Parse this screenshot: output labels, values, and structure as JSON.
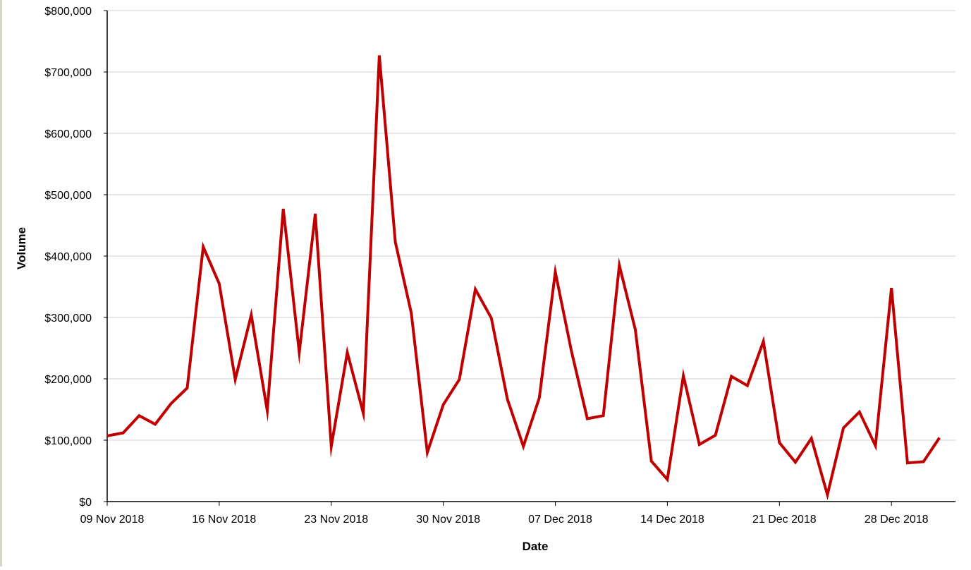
{
  "chart_data": {
    "type": "line",
    "xlabel": "Date",
    "ylabel": "Volume",
    "ylim": [
      0,
      800000
    ],
    "y_ticks": [
      0,
      100000,
      200000,
      300000,
      400000,
      500000,
      600000,
      700000,
      800000
    ],
    "y_tick_labels": [
      "$0",
      "$100,000",
      "$200,000",
      "$300,000",
      "$400,000",
      "$500,000",
      "$600,000",
      "$700,000",
      "$800,000"
    ],
    "xlim": [
      "2018-11-09",
      "2019-01-01"
    ],
    "x_ticks": [
      "2018-11-09",
      "2018-11-16",
      "2018-11-23",
      "2018-11-30",
      "2018-12-07",
      "2018-12-14",
      "2018-12-21",
      "2018-12-28"
    ],
    "x_tick_labels": [
      "09 Nov 2018",
      "16 Nov 2018",
      "23 Nov 2018",
      "30 Nov 2018",
      "07 Dec 2018",
      "14 Dec 2018",
      "21 Dec 2018",
      "28 Dec 2018"
    ],
    "grid": true,
    "legend": false,
    "line_color": "#c00000",
    "series": [
      {
        "x": [
          "2018-11-09",
          "2018-11-10",
          "2018-11-11",
          "2018-11-12",
          "2018-11-13",
          "2018-11-14",
          "2018-11-15",
          "2018-11-16",
          "2018-11-17",
          "2018-11-18",
          "2018-11-19",
          "2018-11-20",
          "2018-11-21",
          "2018-11-22",
          "2018-11-23",
          "2018-11-24",
          "2018-11-25",
          "2018-11-26",
          "2018-11-27",
          "2018-11-28",
          "2018-11-29",
          "2018-11-30",
          "2018-12-01",
          "2018-12-02",
          "2018-12-03",
          "2018-12-04",
          "2018-12-05",
          "2018-12-06",
          "2018-12-07",
          "2018-12-08",
          "2018-12-09",
          "2018-12-10",
          "2018-12-11",
          "2018-12-12",
          "2018-12-13",
          "2018-12-14",
          "2018-12-15",
          "2018-12-16",
          "2018-12-17",
          "2018-12-18",
          "2018-12-19",
          "2018-12-20",
          "2018-12-21",
          "2018-12-22",
          "2018-12-23",
          "2018-12-24",
          "2018-12-25",
          "2018-12-26",
          "2018-12-27",
          "2018-12-28",
          "2018-12-29",
          "2018-12-30",
          "2018-12-31"
        ],
        "values": [
          107000,
          112000,
          140000,
          126000,
          160000,
          185000,
          415000,
          355000,
          199000,
          304000,
          148000,
          477000,
          243000,
          469000,
          90000,
          243000,
          144000,
          727000,
          423000,
          307000,
          80000,
          158000,
          199000,
          346000,
          299000,
          167000,
          90000,
          169000,
          374000,
          246000,
          135000,
          140000,
          385000,
          280000,
          66000,
          36000,
          205000,
          93000,
          108000,
          204000,
          189000,
          261000,
          96000,
          64000,
          103000,
          11000,
          120000,
          146000,
          91000,
          348000,
          63000,
          65000,
          104000
        ]
      }
    ]
  }
}
